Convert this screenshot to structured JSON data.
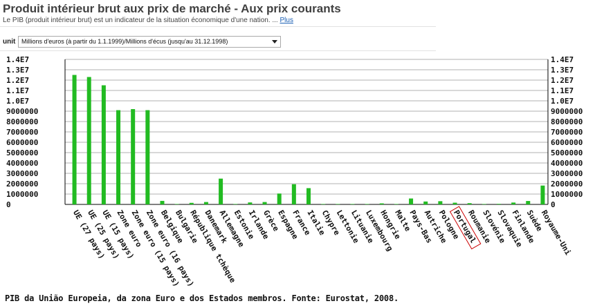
{
  "header": {
    "title": "Produit intérieur brut aux prix de marché - Aux prix courants",
    "subtitle": "Le PIB (produit intérieur brut) est un indicateur de la situation économique d'une nation. ...",
    "more_link": "Plus"
  },
  "unit_selector": {
    "label": "unit",
    "value": "Millions d'euros (à partir du 1.1.1999)/Millions d'écus (jusqu'au 31.12.1998)"
  },
  "caption": "PIB da União Europeia, da zona Euro e dos Estados membros.  Fonte: Eurostat, 2008.",
  "colors": {
    "bar": "#22bb22",
    "highlight": "#cc0000",
    "axis": "#000000"
  },
  "chart_data": {
    "type": "bar",
    "title": "",
    "xlabel": "",
    "ylabel": "",
    "ylim": [
      0,
      14000000
    ],
    "y_ticks": [
      "0",
      "1000000",
      "2000000",
      "3000000",
      "4000000",
      "5000000",
      "6000000",
      "7000000",
      "8000000",
      "9000000",
      "1.0E7",
      "1.1E7",
      "1.2E7",
      "1.3E7",
      "1.4E7"
    ],
    "y_axis_both_sides": true,
    "grid": "horizontal",
    "highlighted_category": "Portugal",
    "categories": [
      "UE (27 pays)",
      "UE (25 pays)",
      "UE (15 pays)",
      "Zone euro",
      "Zone euro (15 pays)",
      "Zone euro (16 pays)",
      "Belgique",
      "Bulgarie",
      "République tchèque",
      "Danemark",
      "Allemagne",
      "Estonie",
      "Irlande",
      "Grèce",
      "Espagne",
      "France",
      "Italie",
      "Chypre",
      "Lettonie",
      "Lituanie",
      "Luxembourg",
      "Hongrie",
      "Malte",
      "Pays-Bas",
      "Autriche",
      "Pologne",
      "Portugal",
      "Roumanie",
      "Slovénie",
      "Slovaquie",
      "Finlande",
      "Suède",
      "Royaume-Uni"
    ],
    "values": [
      12500000,
      12300000,
      11500000,
      9100000,
      9200000,
      9100000,
      340000,
      34000,
      150000,
      230000,
      2490000,
      16000,
      190000,
      230000,
      1050000,
      1950000,
      1570000,
      17000,
      23000,
      32000,
      37000,
      100000,
      6000,
      570000,
      280000,
      310000,
      165000,
      120000,
      37000,
      55000,
      180000,
      330000,
      1820000
    ]
  }
}
